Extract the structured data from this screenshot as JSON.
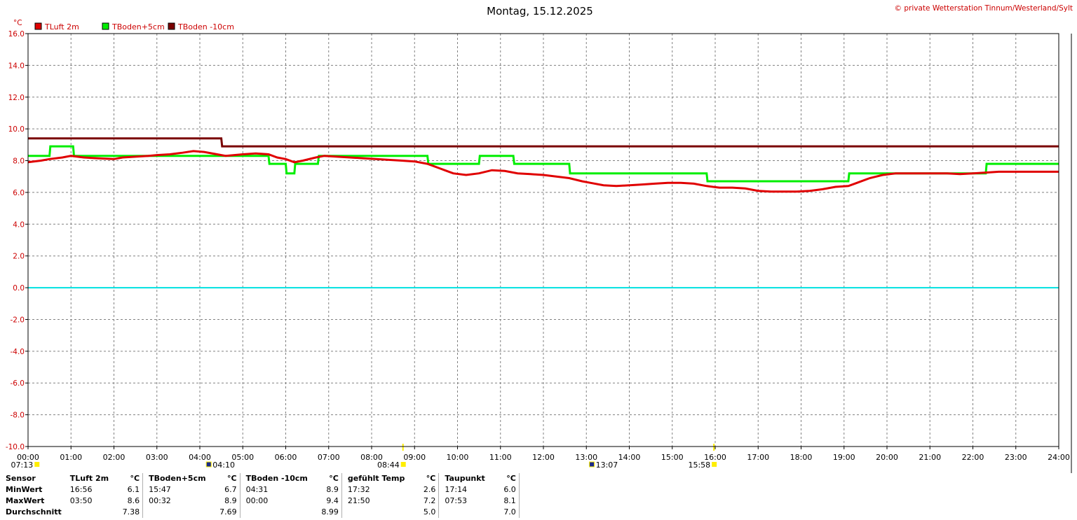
{
  "title": "Montag, 15.12.2025",
  "copyright": "© private Wetterstation Tinnum/Westerland/Sylt",
  "chart_data": {
    "type": "line",
    "y_unit": "°C",
    "ylim": [
      -10,
      16
    ],
    "y_ticks": [
      "16.0",
      "14.0",
      "12.0",
      "10.0",
      "8.0",
      "6.0",
      "4.0",
      "2.0",
      "0.0",
      "-2.0",
      "-4.0",
      "-6.0",
      "-8.0",
      "-10.0"
    ],
    "xlim": [
      0,
      24
    ],
    "x_ticks": [
      "00:00",
      "01:00",
      "02:00",
      "03:00",
      "04:00",
      "05:00",
      "06:00",
      "07:00",
      "08:00",
      "09:00",
      "10:00",
      "11:00",
      "12:00",
      "13:00",
      "14:00",
      "15:00",
      "16:00",
      "17:00",
      "18:00",
      "19:00",
      "20:00",
      "21:00",
      "22:00",
      "23:00",
      "24:00"
    ],
    "grid": true,
    "legend": "top-left",
    "series": [
      {
        "name": "TLuft 2m",
        "color": "#e00000",
        "x": [
          0,
          0.3,
          0.5,
          0.8,
          1.0,
          1.3,
          1.6,
          2.0,
          2.2,
          2.5,
          2.8,
          3.0,
          3.3,
          3.6,
          3.85,
          4.1,
          4.4,
          4.6,
          5.0,
          5.3,
          5.6,
          5.8,
          6.0,
          6.2,
          6.4,
          6.7,
          6.9,
          7.2,
          7.5,
          7.8,
          8.1,
          8.4,
          8.7,
          9.0,
          9.3,
          9.6,
          9.9,
          10.2,
          10.5,
          10.8,
          11.1,
          11.4,
          11.7,
          12.0,
          12.3,
          12.6,
          12.9,
          13.1,
          13.4,
          13.7,
          14.0,
          14.3,
          14.6,
          14.9,
          15.2,
          15.5,
          15.8,
          16.1,
          16.4,
          16.7,
          17.0,
          17.3,
          17.6,
          17.9,
          18.2,
          18.5,
          18.8,
          19.1,
          19.3,
          19.6,
          19.9,
          20.2,
          20.5,
          20.8,
          21.1,
          21.4,
          21.7,
          22.0,
          22.3,
          22.6,
          22.9,
          23.2,
          23.5,
          24.0
        ],
        "values": [
          7.9,
          8.0,
          8.1,
          8.2,
          8.3,
          8.2,
          8.15,
          8.1,
          8.2,
          8.25,
          8.3,
          8.35,
          8.4,
          8.5,
          8.6,
          8.55,
          8.4,
          8.3,
          8.4,
          8.45,
          8.4,
          8.2,
          8.1,
          7.9,
          8.0,
          8.2,
          8.3,
          8.25,
          8.2,
          8.15,
          8.1,
          8.05,
          8.0,
          7.95,
          7.8,
          7.5,
          7.2,
          7.1,
          7.2,
          7.4,
          7.35,
          7.2,
          7.15,
          7.1,
          7.0,
          6.9,
          6.7,
          6.6,
          6.45,
          6.4,
          6.45,
          6.5,
          6.55,
          6.6,
          6.6,
          6.55,
          6.4,
          6.3,
          6.3,
          6.25,
          6.1,
          6.05,
          6.05,
          6.05,
          6.1,
          6.2,
          6.35,
          6.4,
          6.6,
          6.9,
          7.1,
          7.2,
          7.2,
          7.2,
          7.2,
          7.2,
          7.15,
          7.2,
          7.25,
          7.3,
          7.3,
          7.3,
          7.3,
          7.3
        ]
      },
      {
        "name": "TBoden+5cm",
        "color": "#00ee00",
        "x": [
          0,
          0.5,
          0.52,
          1.05,
          1.07,
          2.1,
          2.12,
          3.3,
          3.32,
          5.6,
          5.62,
          6.0,
          6.02,
          6.2,
          6.22,
          6.75,
          6.77,
          9.3,
          9.32,
          10.5,
          10.52,
          11.3,
          11.32,
          12.6,
          12.62,
          15.8,
          15.82,
          19.1,
          19.12,
          22.3,
          22.32,
          24.0
        ],
        "values": [
          8.3,
          8.3,
          8.9,
          8.9,
          8.3,
          8.3,
          8.3,
          8.3,
          8.3,
          8.3,
          7.8,
          7.8,
          7.2,
          7.2,
          7.8,
          7.8,
          8.3,
          8.3,
          7.8,
          7.8,
          8.3,
          8.3,
          7.8,
          7.8,
          7.2,
          7.2,
          6.7,
          6.7,
          7.2,
          7.2,
          7.8,
          7.8
        ]
      },
      {
        "name": "TBoden -10cm",
        "color": "#7a0000",
        "x": [
          0,
          4.5,
          4.52,
          24.0
        ],
        "values": [
          9.4,
          9.4,
          8.9,
          8.9
        ]
      }
    ],
    "reference_line": {
      "y": 0,
      "color": "#00e0e0"
    }
  },
  "astro": [
    {
      "time": "07:13",
      "x": 0.2
    },
    {
      "time": "04:10",
      "x": 4.2
    },
    {
      "time": "08:44",
      "x": 8.73
    },
    {
      "time": "13:07",
      "x": 13.12
    },
    {
      "time": "15:58",
      "x": 15.97
    }
  ],
  "stats": {
    "label_header": "Sensor",
    "unit": "°C",
    "row_labels": [
      "MinWert",
      "MaxWert",
      "Durchschnitt"
    ],
    "columns": [
      {
        "name": "TLuft 2m",
        "min_time": "16:56",
        "min": "6.1",
        "max_time": "03:50",
        "max": "8.6",
        "avg": "7.38"
      },
      {
        "name": "TBoden+5cm",
        "min_time": "15:47",
        "min": "6.7",
        "max_time": "00:32",
        "max": "8.9",
        "avg": "7.69"
      },
      {
        "name": "TBoden -10cm",
        "min_time": "04:31",
        "min": "8.9",
        "max_time": "00:00",
        "max": "9.4",
        "avg": "8.99"
      },
      {
        "name": "gefühlt Temp",
        "min_time": "17:32",
        "min": "2.6",
        "max_time": "21:50",
        "max": "7.2",
        "avg": "5.0"
      },
      {
        "name": "Taupunkt",
        "min_time": "17:14",
        "min": "6.0",
        "max_time": "07:53",
        "max": "8.1",
        "avg": "7.0"
      }
    ]
  }
}
